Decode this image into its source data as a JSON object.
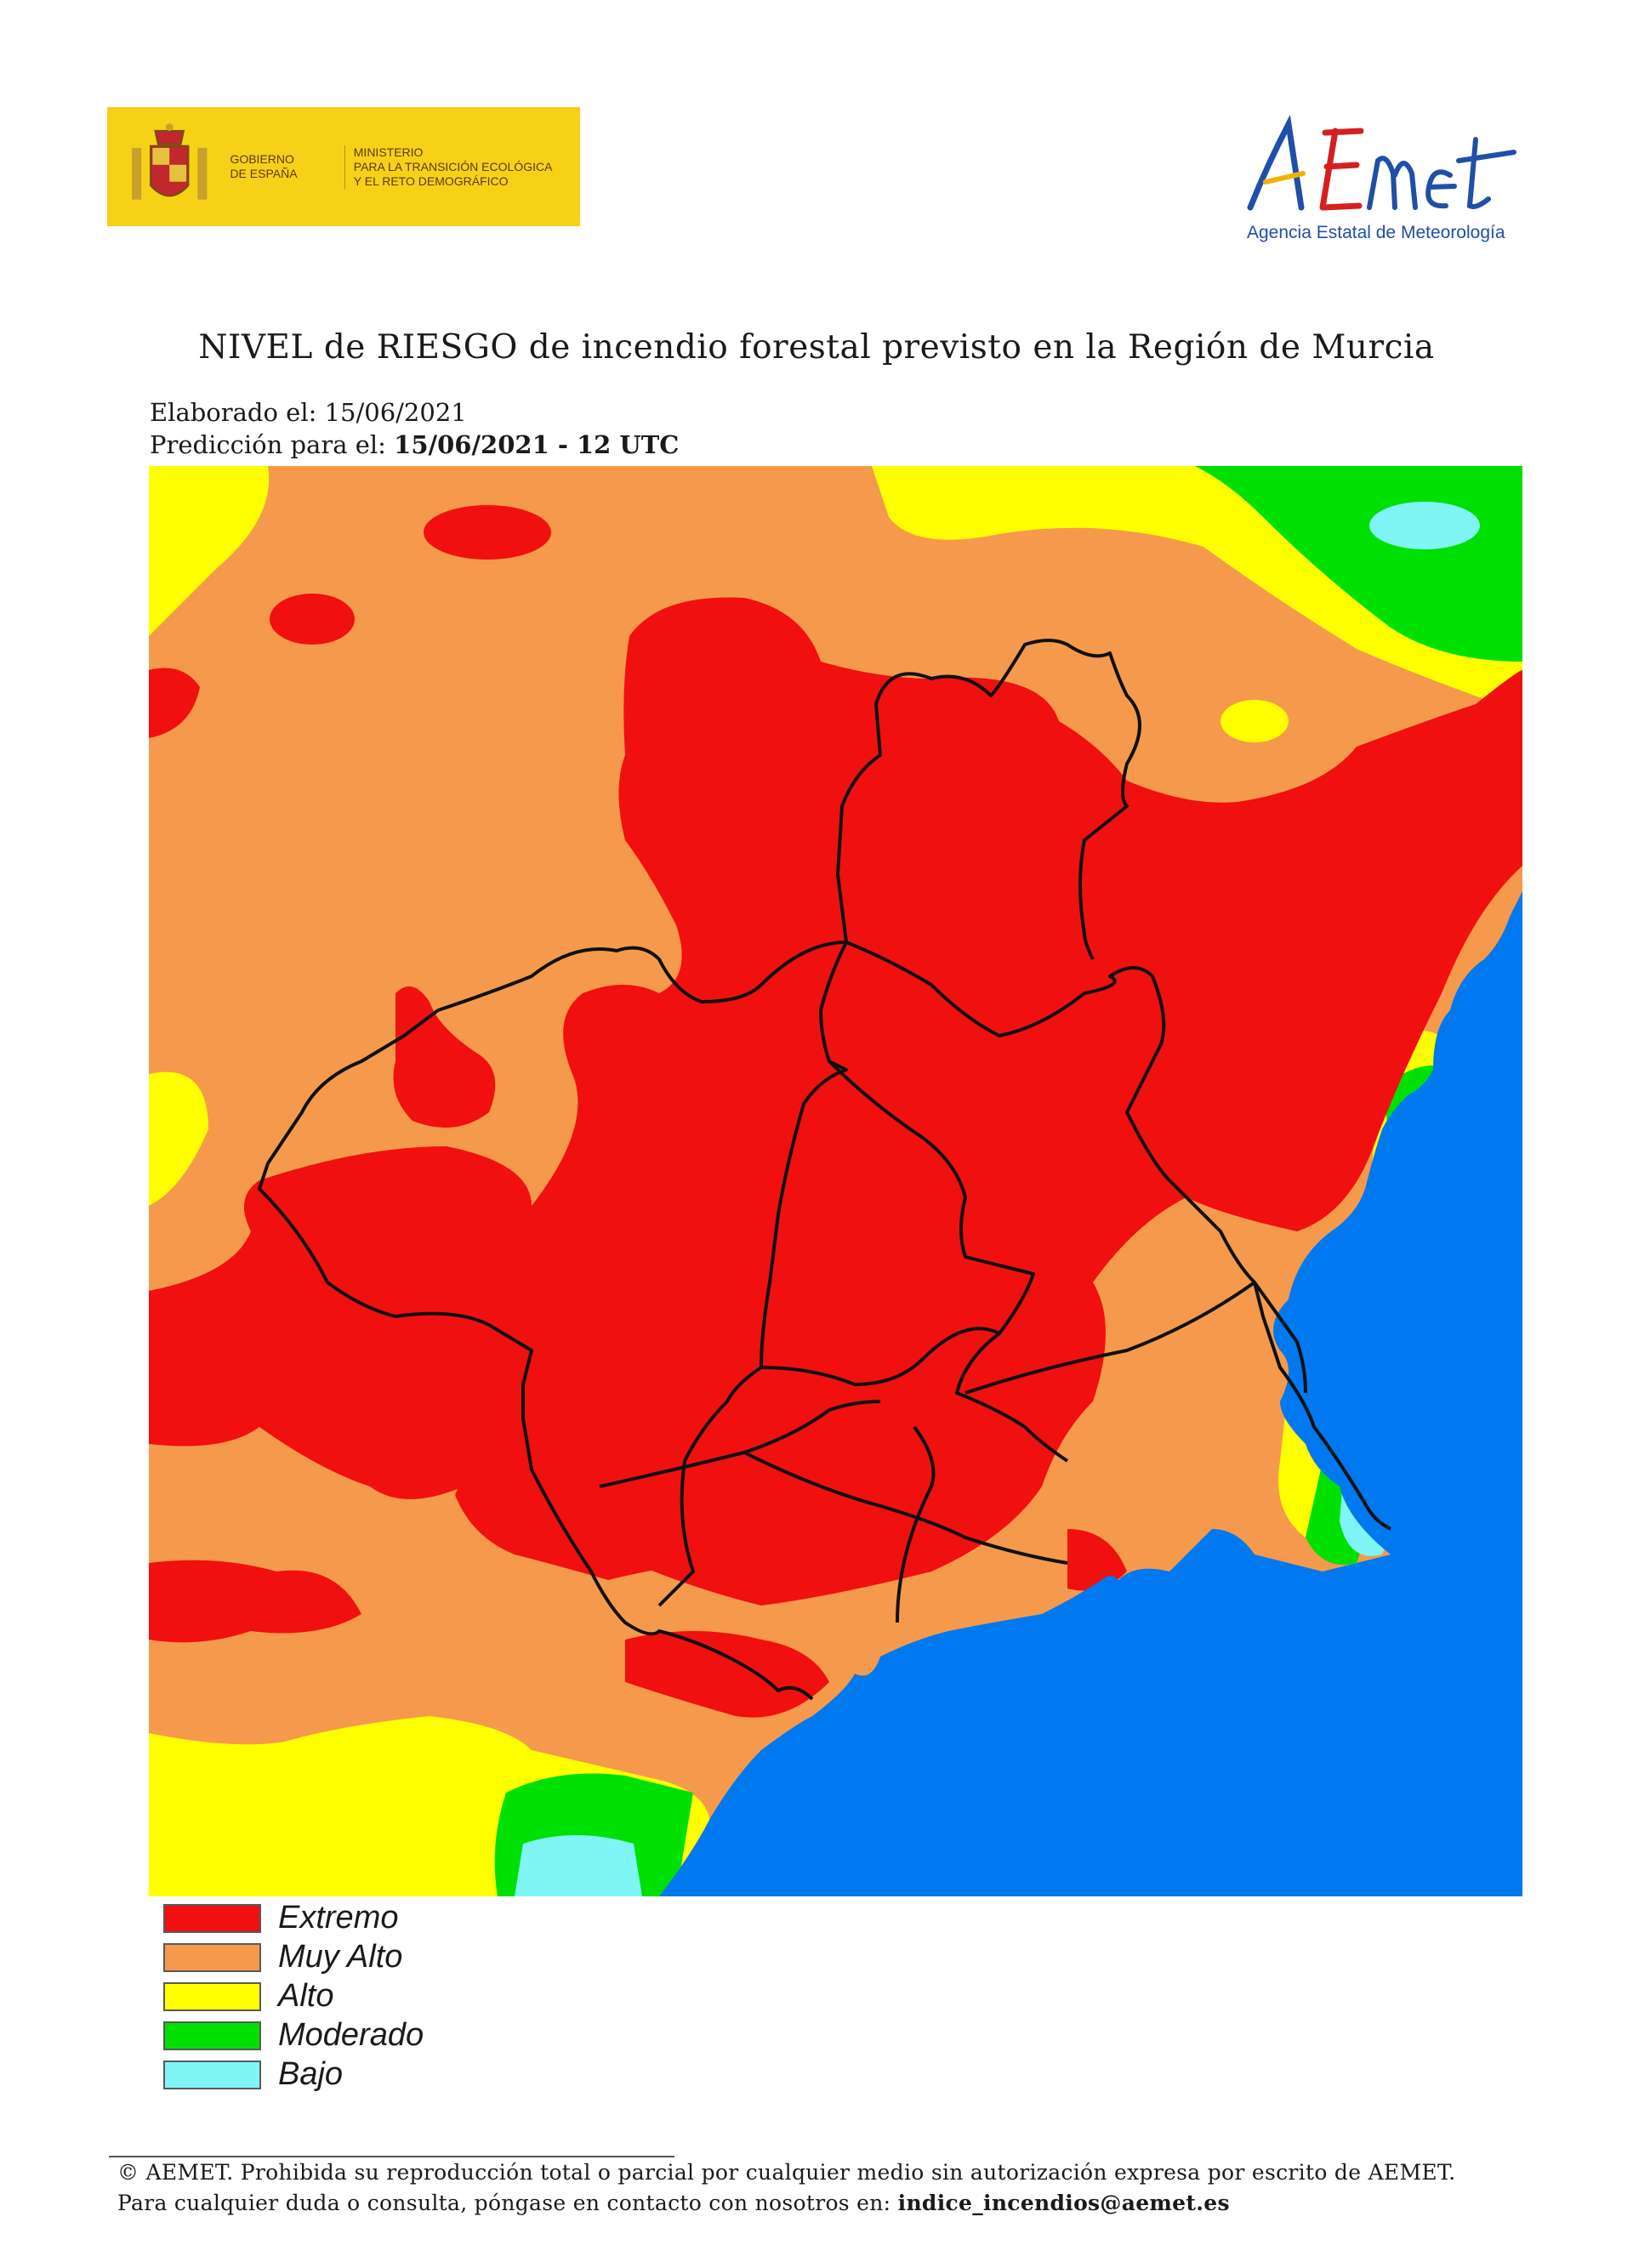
{
  "header": {
    "gov_logo": {
      "gobierno": "GOBIERNO\nDE ESPAÑA",
      "ministerio": "MINISTERIO\nPARA LA TRANSICIÓN ECOLÓGICA\nY EL RETO DEMOGRÁFICO"
    },
    "aemet_logo": {
      "wordmark": "AEMet",
      "subtitle": "Agencia Estatal de Meteorología"
    }
  },
  "title": "NIVEL de RIESGO de incendio forestal previsto en la Región de Murcia",
  "elaborado": {
    "label": "Elaborado el: ",
    "value": "15/06/2021"
  },
  "prediccion": {
    "label": "Predicción para el: ",
    "value": "15/06/2021 - 12 UTC"
  },
  "legend": [
    {
      "label": "Extremo",
      "color": "#f01010"
    },
    {
      "label": "Muy Alto",
      "color": "#f59a4c"
    },
    {
      "label": "Alto",
      "color": "#ffff00"
    },
    {
      "label": "Moderado",
      "color": "#00e000"
    },
    {
      "label": "Bajo",
      "color": "#7ff5f5"
    }
  ],
  "sea_color": "#0078f0",
  "footer": {
    "line1": "© AEMET. Prohibida su reproducción total o parcial por cualquier medio sin autorización expresa por escrito de AEMET.",
    "line2_label": "Para cualquier duda o consulta, póngase en contacto con nosotros en: ",
    "line2_email": "indice_incendios@aemet.es"
  }
}
